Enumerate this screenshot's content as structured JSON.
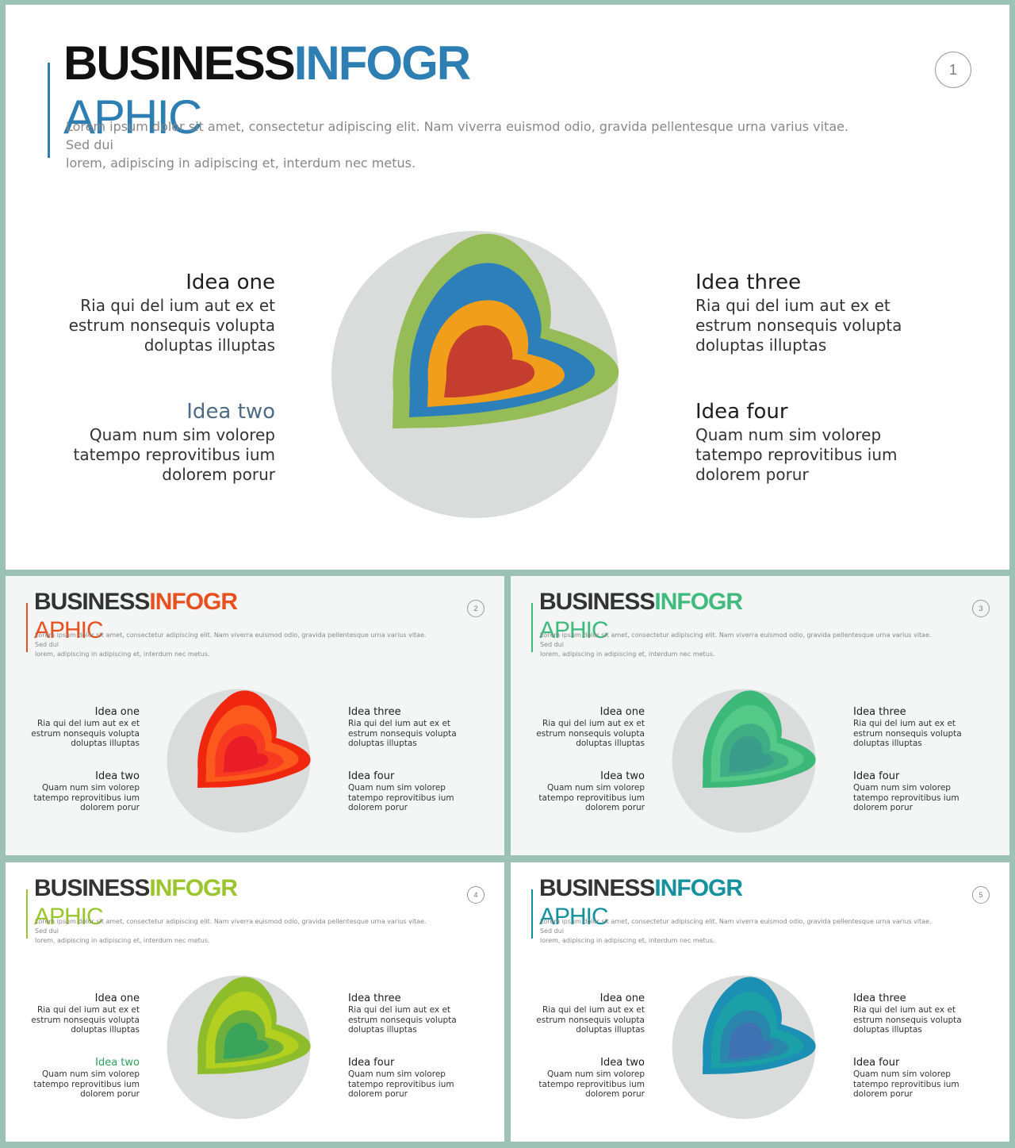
{
  "slides": [
    {
      "number": "1",
      "title_part1": "BUSINESS",
      "title_part2": "INFOGR",
      "title_line2": "APHIC",
      "accent_color": "#2d7eb3",
      "description_line1": "Lorem ipsum dolor sit amet, consectetur adipiscing elit. Nam viverra euismod odio, gravida pellentesque urna varius vitae. Sed dui",
      "description_line2": "lorem, adipiscing in adipiscing et, interdum nec metus.",
      "ideas": [
        {
          "heading": "Idea one",
          "lines": [
            "Ria qui del ium aut ex et",
            "estrum nonsequis volupta",
            "doluptas illuptas"
          ]
        },
        {
          "heading": "Idea two",
          "heading_color": "#4d6b86",
          "lines": [
            "Quam num sim volorep",
            "tatempo reprovitibus ium",
            "dolorem porur"
          ]
        },
        {
          "heading": "Idea three",
          "lines": [
            "Ria qui del ium aut ex et",
            "estrum nonsequis volupta",
            "doluptas illuptas"
          ]
        },
        {
          "heading": "Idea four",
          "lines": [
            "Quam num sim volorep",
            "tatempo reprovitibus ium",
            "dolorem porur"
          ]
        }
      ],
      "heart_layers": [
        "#95bc57",
        "#2d7fba",
        "#f19e1b",
        "#c43d2e"
      ]
    },
    {
      "number": "2",
      "title_part1": "BUSINESS",
      "title_part2": "INFOGR",
      "title_line2": "APHIC",
      "accent_color": "#e8511f",
      "description_line1": "Lorem ipsum dolor sit amet, consectetur adipiscing elit. Nam viverra euismod odio, gravida pellentesque urna varius vitae. Sed dui",
      "description_line2": "lorem, adipiscing in adipiscing et, interdum nec metus.",
      "ideas": [
        {
          "heading": "Idea one",
          "lines": [
            "Ria qui del ium aut ex et",
            "estrum nonsequis volupta",
            "doluptas illuptas"
          ]
        },
        {
          "heading": "Idea two",
          "lines": [
            "Quam num sim volorep",
            "tatempo reprovitibus ium",
            "dolorem porur"
          ]
        },
        {
          "heading": "Idea three",
          "lines": [
            "Ria qui del ium aut ex et",
            "estrum nonsequis volupta",
            "doluptas illuptas"
          ]
        },
        {
          "heading": "Idea four",
          "lines": [
            "Quam num sim volorep",
            "tatempo reprovitibus ium",
            "dolorem porur"
          ]
        }
      ],
      "heart_layers": [
        "#f0260f",
        "#fb5a1c",
        "#f73a20",
        "#e81d27"
      ]
    },
    {
      "number": "3",
      "title_part1": "BUSINESS",
      "title_part2": "INFOGR",
      "title_line2": "APHIC",
      "accent_color": "#3fbb7d",
      "description_line1": "Lorem ipsum dolor sit amet, consectetur adipiscing elit. Nam viverra euismod odio, gravida pellentesque urna varius vitae. Sed dui",
      "description_line2": "lorem, adipiscing in adipiscing et, interdum nec metus.",
      "ideas": [
        {
          "heading": "Idea one",
          "lines": [
            "Ria qui del ium aut ex et",
            "estrum nonsequis volupta",
            "doluptas illuptas"
          ]
        },
        {
          "heading": "Idea two",
          "lines": [
            "Quam num sim volorep",
            "tatempo reprovitibus ium",
            "dolorem porur"
          ]
        },
        {
          "heading": "Idea three",
          "lines": [
            "Ria qui del ium aut ex et",
            "estrum nonsequis volupta",
            "doluptas illuptas"
          ]
        },
        {
          "heading": "Idea four",
          "lines": [
            "Quam num sim volorep",
            "tatempo reprovitibus ium",
            "dolorem porur"
          ]
        }
      ],
      "heart_layers": [
        "#3cb878",
        "#54c988",
        "#3fae84",
        "#3a9d8c"
      ]
    },
    {
      "number": "4",
      "title_part1": "BUSINESS",
      "title_part2": "INFOGR",
      "title_line2": "APHIC",
      "accent_color": "#9ac52c",
      "description_line1": "Lorem ipsum dolor sit amet, consectetur adipiscing elit. Nam viverra euismod odio, gravida pellentesque urna varius vitae. Sed dui",
      "description_line2": "lorem, adipiscing in adipiscing et, interdum nec metus.",
      "ideas": [
        {
          "heading": "Idea one",
          "lines": [
            "Ria qui del ium aut ex et",
            "estrum nonsequis volupta",
            "doluptas illuptas"
          ]
        },
        {
          "heading": "Idea two",
          "heading_color": "#2fa05a",
          "lines": [
            "Quam num sim volorep",
            "tatempo reprovitibus ium",
            "dolorem porur"
          ]
        },
        {
          "heading": "Idea three",
          "lines": [
            "Ria qui del ium aut ex et",
            "estrum nonsequis volupta",
            "doluptas illuptas"
          ]
        },
        {
          "heading": "Idea four",
          "lines": [
            "Quam num sim volorep",
            "tatempo reprovitibus ium",
            "dolorem porur"
          ]
        }
      ],
      "heart_layers": [
        "#8dbd2b",
        "#b3cf1f",
        "#6db13c",
        "#3aa55a"
      ]
    },
    {
      "number": "5",
      "title_part1": "BUSINESS",
      "title_part2": "INFOGR",
      "title_line2": "APHIC",
      "accent_color": "#14919c",
      "description_line1": "Lorem ipsum dolor sit amet, consectetur adipiscing elit. Nam viverra euismod odio, gravida pellentesque urna varius vitae. Sed dui",
      "description_line2": "lorem, adipiscing in adipiscing et, interdum nec metus.",
      "ideas": [
        {
          "heading": "Idea one",
          "lines": [
            "Ria qui del ium aut ex et",
            "estrum nonsequis volupta",
            "doluptas illuptas"
          ]
        },
        {
          "heading": "Idea two",
          "lines": [
            "Quam num sim volorep",
            "tatempo reprovitibus ium",
            "dolorem porur"
          ]
        },
        {
          "heading": "Idea three",
          "lines": [
            "Ria qui del ium aut ex et",
            "estrum nonsequis volupta",
            "doluptas illuptas"
          ]
        },
        {
          "heading": "Idea four",
          "lines": [
            "Quam num sim volorep",
            "tatempo reprovitibus ium",
            "dolorem porur"
          ]
        }
      ],
      "heart_layers": [
        "#1b8fb4",
        "#1aa0a6",
        "#2b86ae",
        "#3f72b3"
      ]
    }
  ],
  "heart_base_color": "#dadcdc"
}
